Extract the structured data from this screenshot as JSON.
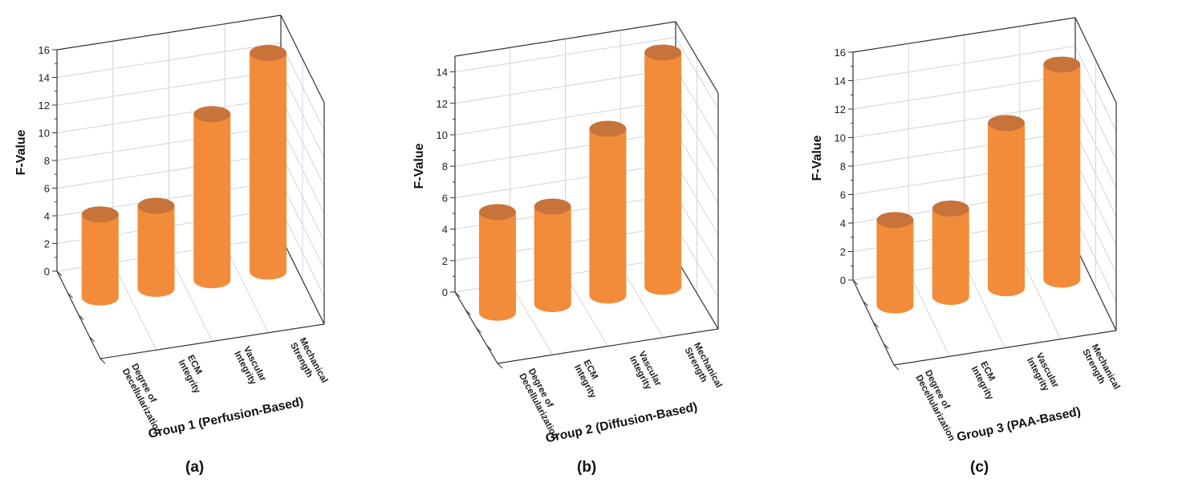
{
  "figure": {
    "panel_labels": [
      "(a)",
      "(b)",
      "(c)"
    ]
  },
  "colors": {
    "bar_side": "#f28c3a",
    "bar_top": "#c8733a",
    "grid": "#d4d4d4",
    "axis": "#333333"
  },
  "chart_data": [
    {
      "type": "bar",
      "style": "3d-cylinder",
      "panel": "(a)",
      "categories": [
        "Degree of Decellularization",
        "ECM Integrity",
        "Vascular Integrity",
        "Mechanical Strength"
      ],
      "category_lines": [
        [
          "Degree of",
          "Decellularization"
        ],
        [
          "ECM",
          "Integrity"
        ],
        [
          "Vascular",
          "Integrity"
        ],
        [
          "Mechanical",
          "Strength"
        ]
      ],
      "values": [
        6.0,
        6.0,
        12.0,
        15.8
      ],
      "xlabel": "Group 1 (Perfusion-Based)",
      "ylabel": "F-Value",
      "ylim": [
        0,
        16
      ],
      "yticks": [
        0,
        2,
        4,
        6,
        8,
        10,
        12,
        14,
        16
      ],
      "grid": true
    },
    {
      "type": "bar",
      "style": "3d-cylinder",
      "panel": "(b)",
      "categories": [
        "Degree of Decellularization",
        "ECM Integrity",
        "Vascular Integrity",
        "Mechanical Strength"
      ],
      "category_lines": [
        [
          "Degree of",
          "Decellularization"
        ],
        [
          "ECM",
          "Integrity"
        ],
        [
          "Vascular",
          "Integrity"
        ],
        [
          "Mechanical",
          "Strength"
        ]
      ],
      "values": [
        6.4,
        6.2,
        10.6,
        14.9
      ],
      "xlabel": "Group 2 (Diffusion-Based)",
      "ylabel": "F-Value",
      "ylim": [
        0,
        15
      ],
      "yticks": [
        0,
        2,
        4,
        6,
        8,
        10,
        12,
        14
      ],
      "grid": true
    },
    {
      "type": "bar",
      "style": "3d-cylinder",
      "panel": "(c)",
      "categories": [
        "Degree of Decellularization",
        "ECM Integrity",
        "Vascular Integrity",
        "Mechanical Strength"
      ],
      "category_lines": [
        [
          "Degree of",
          "Decellularization"
        ],
        [
          "ECM",
          "Integrity"
        ],
        [
          "Vascular",
          "Integrity"
        ],
        [
          "Mechanical",
          "Strength"
        ]
      ],
      "values": [
        6.0,
        6.2,
        11.6,
        15.1
      ],
      "xlabel": "Group 3 (PAA-Based)",
      "ylabel": "F-Value",
      "ylim": [
        0,
        16
      ],
      "yticks": [
        0,
        2,
        4,
        6,
        8,
        10,
        12,
        14,
        16
      ],
      "grid": true
    }
  ]
}
